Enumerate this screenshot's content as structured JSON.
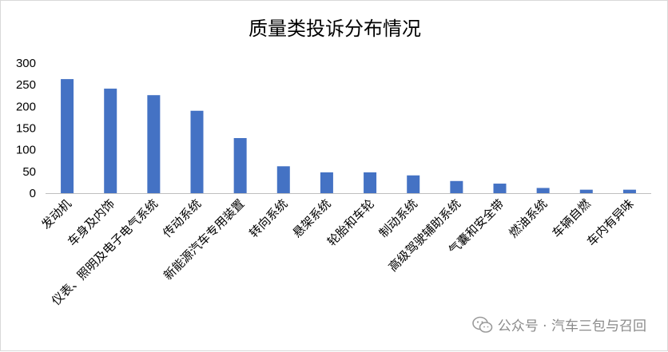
{
  "chart_data": {
    "type": "bar",
    "title": "质量类投诉分布情况",
    "categories": [
      "发动机",
      "车身及内饰",
      "仪表、照明及电子电气系统",
      "传动系统",
      "新能源汽车专用装置",
      "转向系统",
      "悬架系统",
      "轮胎和车轮",
      "制动系统",
      "高级驾驶辅助系统",
      "气囊和安全带",
      "燃油系统",
      "车辆自燃",
      "车内有异味"
    ],
    "values": [
      263,
      241,
      226,
      190,
      127,
      62,
      48,
      48,
      41,
      28,
      22,
      12,
      8,
      8
    ],
    "ylim": [
      0,
      300
    ],
    "yticks": [
      0,
      50,
      100,
      150,
      200,
      250,
      300
    ],
    "bar_color": "#4472c4",
    "grid": false,
    "legend": "none"
  },
  "watermark": {
    "icon": "wechat-icon",
    "text": "公众号 · 汽车三包与召回"
  }
}
